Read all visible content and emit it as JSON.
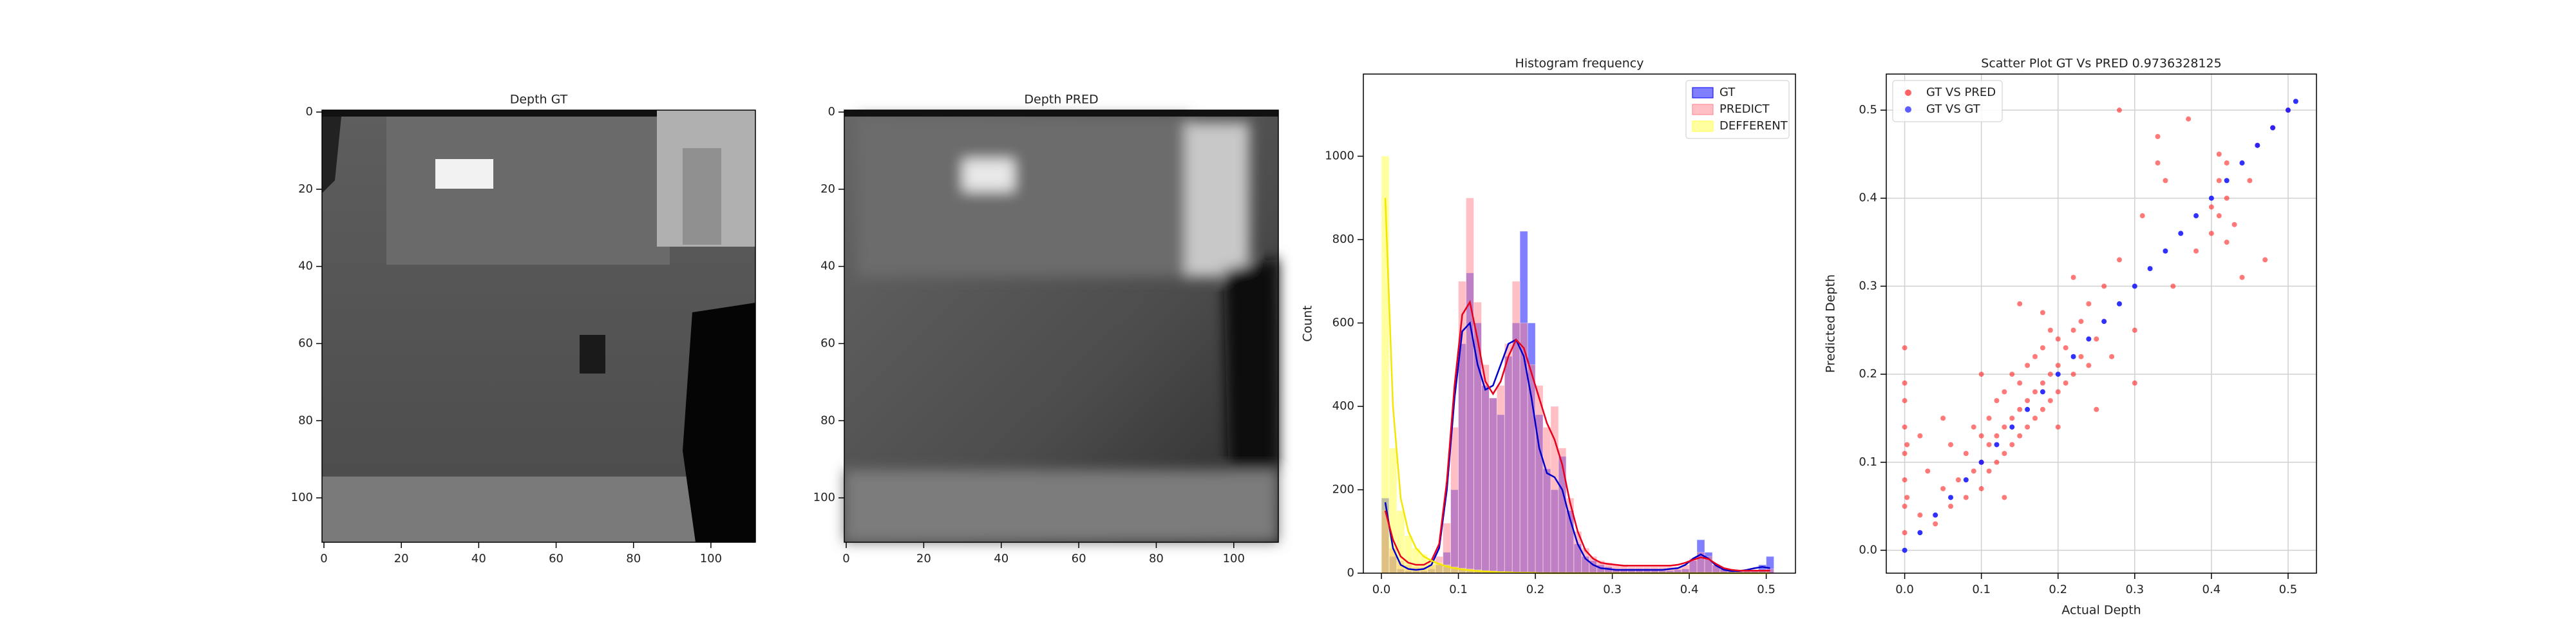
{
  "chart_data": [
    {
      "type": "image",
      "title": "Depth GT",
      "xlim": [
        -0.5,
        111.5
      ],
      "ylim": [
        111.5,
        -0.5
      ],
      "xticks": [
        0,
        20,
        40,
        60,
        80,
        100
      ],
      "yticks": [
        0,
        20,
        40,
        60,
        80,
        100
      ]
    },
    {
      "type": "image",
      "title": "Depth PRED",
      "xlim": [
        -0.5,
        111.5
      ],
      "ylim": [
        111.5,
        -0.5
      ],
      "xticks": [
        0,
        20,
        40,
        60,
        80,
        100
      ],
      "yticks": [
        0,
        20,
        40,
        60,
        80,
        100
      ]
    },
    {
      "type": "histogram",
      "title": "Histogram frequency",
      "y_label": "Count",
      "legend": "upper right",
      "xlim": [
        -0.0235,
        0.538
      ],
      "ylim": [
        0,
        1197
      ],
      "xticks": [
        {
          "value": 0,
          "label": "0.0"
        },
        0.1,
        0.2,
        0.3,
        0.4,
        0.5
      ],
      "yticks": [
        0,
        200,
        400,
        600,
        800,
        1000
      ],
      "bins": [
        0,
        0.01,
        0.02,
        0.03,
        0.04,
        0.05,
        0.06,
        0.07,
        0.08,
        0.09,
        0.1,
        0.11,
        0.12,
        0.13,
        0.14,
        0.15,
        0.16,
        0.17,
        0.18,
        0.19,
        0.2,
        0.21,
        0.22,
        0.23,
        0.24,
        0.25,
        0.26,
        0.27,
        0.28,
        0.29,
        0.3,
        0.31,
        0.32,
        0.33,
        0.34,
        0.35,
        0.36,
        0.37,
        0.38,
        0.39,
        0.4,
        0.41,
        0.42,
        0.43,
        0.44,
        0.45,
        0.46,
        0.47,
        0.48,
        0.49,
        0.5,
        0.51
      ],
      "kde_x": [
        0.005,
        0.015,
        0.025,
        0.035,
        0.045,
        0.055,
        0.065,
        0.075,
        0.085,
        0.095,
        0.105,
        0.115,
        0.125,
        0.135,
        0.145,
        0.155,
        0.165,
        0.175,
        0.185,
        0.195,
        0.205,
        0.215,
        0.225,
        0.235,
        0.245,
        0.255,
        0.265,
        0.275,
        0.285,
        0.295,
        0.305,
        0.315,
        0.325,
        0.335,
        0.345,
        0.355,
        0.365,
        0.375,
        0.385,
        0.395,
        0.405,
        0.415,
        0.425,
        0.435,
        0.445,
        0.455,
        0.465,
        0.475,
        0.485,
        0.495,
        0.505
      ],
      "series": [
        {
          "name": "GT",
          "color": "#0000ff",
          "kde_color": "#0000cc",
          "values": [
            180,
            40,
            10,
            5,
            5,
            5,
            10,
            20,
            50,
            200,
            550,
            720,
            600,
            450,
            420,
            380,
            520,
            600,
            820,
            600,
            380,
            250,
            200,
            280,
            150,
            70,
            40,
            30,
            20,
            15,
            10,
            10,
            8,
            8,
            10,
            8,
            6,
            6,
            8,
            10,
            30,
            80,
            50,
            20,
            10,
            5,
            5,
            5,
            5,
            20,
            40
          ],
          "kde": [
            170,
            60,
            20,
            10,
            8,
            10,
            20,
            60,
            200,
            420,
            580,
            600,
            500,
            440,
            450,
            500,
            550,
            560,
            520,
            420,
            300,
            240,
            230,
            200,
            130,
            70,
            35,
            20,
            12,
            10,
            8,
            8,
            8,
            8,
            8,
            8,
            8,
            10,
            12,
            20,
            35,
            45,
            35,
            18,
            8,
            5,
            5,
            8,
            12,
            15,
            12
          ]
        },
        {
          "name": "PREDICT",
          "color": "#ff7f8a",
          "kde_color": "#e8001c",
          "values": [
            150,
            60,
            30,
            20,
            15,
            15,
            20,
            40,
            120,
            350,
            700,
            900,
            650,
            500,
            420,
            450,
            550,
            700,
            600,
            500,
            450,
            350,
            400,
            300,
            180,
            100,
            60,
            40,
            30,
            25,
            20,
            18,
            15,
            15,
            15,
            15,
            15,
            15,
            15,
            20,
            35,
            50,
            40,
            20,
            10,
            8,
            5,
            5,
            5,
            8,
            10
          ],
          "kde": [
            150,
            80,
            40,
            25,
            20,
            20,
            30,
            70,
            220,
            450,
            620,
            650,
            560,
            460,
            430,
            460,
            520,
            560,
            540,
            480,
            420,
            360,
            320,
            260,
            170,
            100,
            55,
            35,
            25,
            22,
            20,
            18,
            18,
            18,
            18,
            18,
            18,
            18,
            20,
            25,
            32,
            38,
            34,
            22,
            12,
            8,
            6,
            6,
            6,
            6,
            6
          ]
        },
        {
          "name": "DEFFERENT",
          "color": "#ffff40",
          "kde_color": "#f5e600",
          "values": [
            1000,
            300,
            150,
            90,
            60,
            45,
            35,
            25,
            20,
            15,
            12,
            10,
            8,
            6,
            5,
            4,
            3,
            2,
            2,
            1,
            1,
            0,
            0,
            0,
            0,
            0,
            0,
            0,
            0,
            0,
            0,
            0,
            0,
            0,
            0,
            0,
            0,
            0,
            0,
            0,
            0,
            0,
            0,
            0,
            0,
            0,
            0,
            0,
            0,
            0,
            0
          ],
          "kde": [
            900,
            400,
            180,
            100,
            60,
            40,
            30,
            22,
            16,
            12,
            9,
            7,
            5,
            4,
            3,
            2,
            2,
            1,
            1,
            1,
            0,
            0,
            0,
            0,
            0,
            0,
            0,
            0,
            0,
            0,
            0,
            0,
            0,
            0,
            0,
            0,
            0,
            0,
            0,
            0,
            0,
            0,
            0,
            0,
            0,
            0,
            0,
            0,
            0,
            0,
            0
          ]
        }
      ]
    },
    {
      "type": "scatter",
      "title": "Scatter Plot GT Vs PRED 0.9736328125",
      "x_label": "Actual Depth",
      "y_label": "Predicted Depth",
      "legend": "upper left",
      "grid": true,
      "xlim": [
        -0.024,
        0.537
      ],
      "ylim": [
        -0.026,
        0.541
      ],
      "xticks": [
        {
          "value": 0,
          "label": "0.0"
        },
        0.1,
        0.2,
        0.3,
        0.4,
        0.5
      ],
      "yticks": [
        {
          "value": 0,
          "label": "0.0"
        },
        0.1,
        0.2,
        0.3,
        0.4,
        0.5
      ],
      "series": [
        {
          "name": "GT VS PRED",
          "color": "#ff2020",
          "x": [
            0,
            0,
            0,
            0,
            0,
            0,
            0,
            0,
            0.003,
            0.003,
            0.02,
            0.03,
            0.04,
            0.05,
            0.06,
            0.06,
            0.07,
            0.08,
            0.08,
            0.09,
            0.09,
            0.1,
            0.1,
            0.1,
            0.11,
            0.11,
            0.11,
            0.12,
            0.12,
            0.12,
            0.13,
            0.13,
            0.13,
            0.14,
            0.14,
            0.14,
            0.15,
            0.15,
            0.15,
            0.16,
            0.16,
            0.16,
            0.17,
            0.17,
            0.17,
            0.18,
            0.18,
            0.18,
            0.19,
            0.19,
            0.19,
            0.2,
            0.2,
            0.2,
            0.21,
            0.21,
            0.22,
            0.22,
            0.23,
            0.23,
            0.24,
            0.24,
            0.25,
            0.26,
            0.27,
            0.28,
            0.3,
            0.31,
            0.33,
            0.33,
            0.34,
            0.35,
            0.37,
            0.38,
            0.4,
            0.4,
            0.41,
            0.41,
            0.41,
            0.42,
            0.42,
            0.42,
            0.43,
            0.44,
            0.45,
            0.46,
            0.47,
            0.48,
            0.5,
            0.15,
            0.2,
            0.1,
            0.25,
            0.05,
            0.28,
            0.13,
            0.22,
            0.18,
            0.3,
            0.02
          ],
          "y": [
            0.02,
            0.05,
            0.08,
            0.11,
            0.14,
            0.17,
            0.19,
            0.23,
            0.12,
            0.06,
            0.04,
            0.09,
            0.03,
            0.07,
            0.05,
            0.12,
            0.08,
            0.06,
            0.11,
            0.09,
            0.14,
            0.07,
            0.1,
            0.13,
            0.09,
            0.12,
            0.15,
            0.1,
            0.13,
            0.17,
            0.11,
            0.14,
            0.18,
            0.12,
            0.15,
            0.2,
            0.13,
            0.16,
            0.19,
            0.14,
            0.17,
            0.21,
            0.15,
            0.18,
            0.22,
            0.16,
            0.19,
            0.23,
            0.17,
            0.2,
            0.25,
            0.18,
            0.21,
            0.24,
            0.19,
            0.23,
            0.2,
            0.25,
            0.22,
            0.26,
            0.21,
            0.28,
            0.24,
            0.3,
            0.22,
            0.33,
            0.25,
            0.38,
            0.44,
            0.47,
            0.42,
            0.3,
            0.49,
            0.34,
            0.36,
            0.39,
            0.42,
            0.38,
            0.45,
            0.4,
            0.35,
            0.44,
            0.37,
            0.31,
            0.42,
            0.46,
            0.33,
            0.48,
            0.5,
            0.28,
            0.14,
            0.2,
            0.16,
            0.15,
            0.5,
            0.06,
            0.31,
            0.27,
            0.19,
            0.13
          ]
        },
        {
          "name": "GT VS GT",
          "color": "#1a1aff",
          "x": [
            0,
            0.02,
            0.04,
            0.06,
            0.08,
            0.1,
            0.12,
            0.14,
            0.16,
            0.18,
            0.2,
            0.22,
            0.24,
            0.26,
            0.28,
            0.3,
            0.32,
            0.34,
            0.36,
            0.38,
            0.4,
            0.42,
            0.44,
            0.46,
            0.48,
            0.5,
            0.51
          ],
          "y": [
            0,
            0.02,
            0.04,
            0.06,
            0.08,
            0.1,
            0.12,
            0.14,
            0.16,
            0.18,
            0.2,
            0.22,
            0.24,
            0.26,
            0.28,
            0.3,
            0.32,
            0.34,
            0.36,
            0.38,
            0.4,
            0.42,
            0.44,
            0.46,
            0.48,
            0.5,
            0.51
          ]
        }
      ]
    }
  ]
}
